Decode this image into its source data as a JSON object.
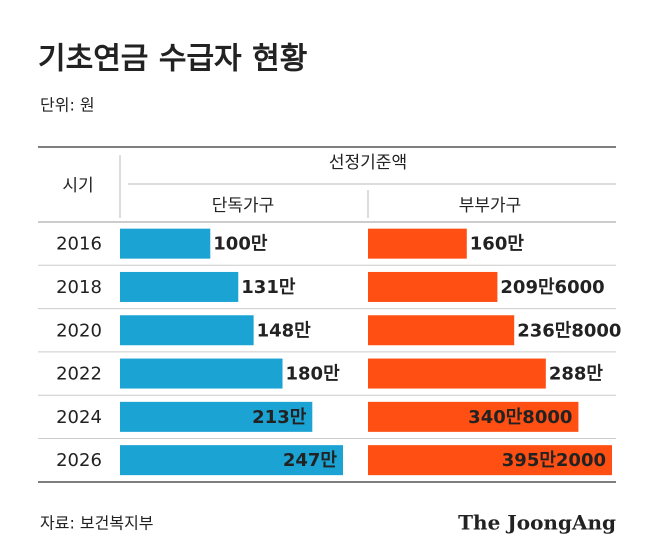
{
  "chart_data": {
    "type": "bar",
    "title": "기초연금 수급자 현황",
    "unit_note": "단위: 원",
    "category_header": "시기",
    "group_header": "선정기준액",
    "categories": [
      "2016",
      "2018",
      "2020",
      "2022",
      "2024",
      "2026"
    ],
    "series": [
      {
        "name": "단독가구",
        "color": "#1ba3d4",
        "values": [
          100,
          131,
          148,
          180,
          213,
          247
        ],
        "value_labels": [
          "100만",
          "131만",
          "148만",
          "180만",
          "213만",
          "247만"
        ]
      },
      {
        "name": "부부가구",
        "color": "#ff4f12",
        "values": [
          160,
          209.6,
          236.8,
          288,
          340.8,
          395.2
        ],
        "value_labels": [
          "160만",
          "209만6000",
          "236만8000",
          "288만",
          "340만8000",
          "395만2000"
        ]
      }
    ],
    "source": "자료: 보건복지부",
    "brand": "The JoongAng"
  }
}
